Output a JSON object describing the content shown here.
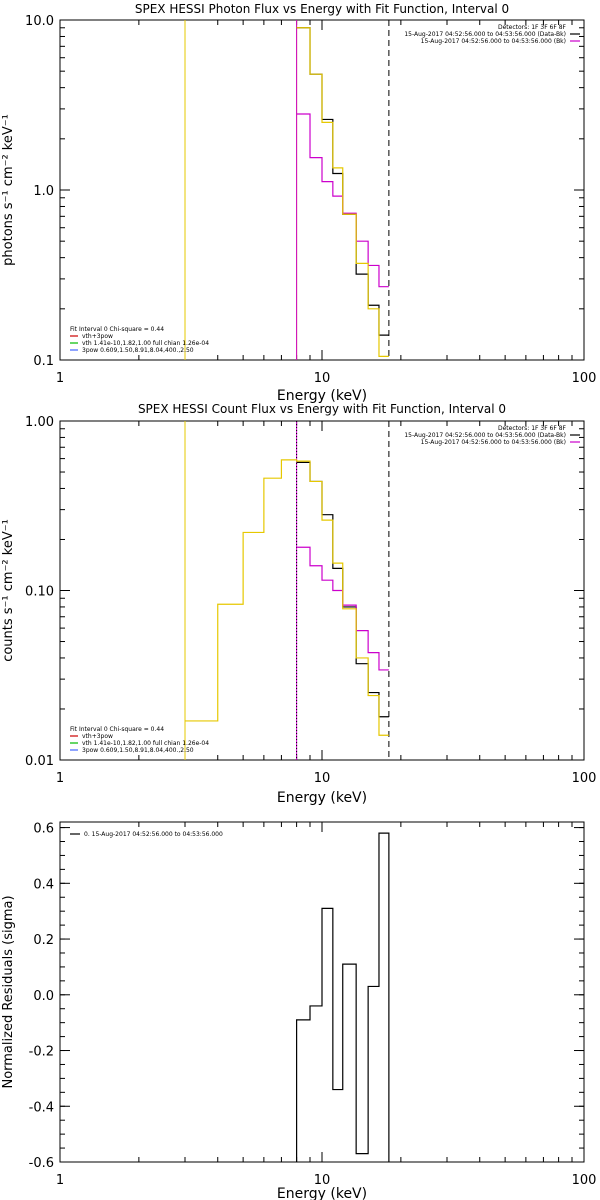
{
  "chart_data": [
    {
      "type": "line",
      "title": "SPEX HESSI Photon Flux vs Energy with Fit Function, Interval 0",
      "xlabel": "Energy (keV)",
      "ylabel": "photons s⁻¹ cm⁻² keV⁻¹",
      "xscale": "log",
      "yscale": "log",
      "xlim": [
        1,
        100
      ],
      "ylim": [
        0.1,
        10
      ],
      "xticks": [
        {
          "v": 1,
          "label": "1"
        },
        {
          "v": 10,
          "label": "10"
        },
        {
          "v": 100,
          "label": "100"
        }
      ],
      "yticks": [
        {
          "v": 0.1,
          "label": "0.1"
        },
        {
          "v": 1,
          "label": "1.0"
        },
        {
          "v": 10,
          "label": "10.0"
        }
      ],
      "header_lines": [
        "Detectors: 1F 3F 6F 8F",
        "15-Aug-2017 04:52:56.000 to 04:53:56.000 (Data-Bk)",
        "15-Aug-2017 04:52:56.000 to 04:53:56.000 (Bk)"
      ],
      "fit_legend": [
        "Fit Interval  0   Chi-square = 0.44",
        "vth+3pow",
        "vth 1.41e-10,1.82,1.00  full chian 1.26e-04",
        "3pow 0.609,1.50,8.91,8.04,400.,2.50"
      ],
      "vlines": [
        {
          "x": 3.0,
          "color": "#e6c800",
          "style": "solid"
        },
        {
          "x": 8.0,
          "color": "#e6c800",
          "style": "solid"
        },
        {
          "x": 8.0,
          "color": "#cc00cc",
          "style": "solid"
        },
        {
          "x": 18.0,
          "color": "#000000",
          "style": "dashed"
        }
      ],
      "edges": [
        8.0,
        9.0,
        10.0,
        11.0,
        12.0,
        13.5,
        15.0,
        16.5,
        18.0
      ],
      "series": [
        {
          "name": "15-Aug-2017 04:52:56.000 to 04:53:56.000 (Data-Bk)",
          "color": "#000000",
          "values": [
            9.0,
            4.8,
            2.6,
            1.25,
            0.72,
            0.32,
            0.21,
            0.14
          ]
        },
        {
          "name": "15-Aug-2017 04:52:56.000 to 04:53:56.000 (Bk)",
          "color": "#cc00cc",
          "values": [
            2.8,
            1.55,
            1.12,
            0.92,
            0.73,
            0.5,
            0.36,
            0.27
          ]
        },
        {
          "name": "vth+3pow",
          "color": "#e6c800",
          "values": [
            9.0,
            4.8,
            2.5,
            1.35,
            0.72,
            0.37,
            0.2,
            0.105
          ]
        }
      ]
    },
    {
      "type": "line",
      "title": "SPEX HESSI Count Flux vs Energy with Fit Function, Interval 0",
      "xlabel": "Energy (keV)",
      "ylabel": "counts s⁻¹ cm⁻² keV⁻¹",
      "xscale": "log",
      "yscale": "log",
      "xlim": [
        1,
        100
      ],
      "ylim": [
        0.01,
        1
      ],
      "xticks": [
        {
          "v": 1,
          "label": "1"
        },
        {
          "v": 10,
          "label": "10"
        },
        {
          "v": 100,
          "label": "100"
        }
      ],
      "yticks": [
        {
          "v": 0.01,
          "label": "0.01"
        },
        {
          "v": 0.1,
          "label": "0.10"
        },
        {
          "v": 1,
          "label": "1.00"
        }
      ],
      "header_lines": [
        "Detectors: 1F 3F 6F 8F",
        "15-Aug-2017 04:52:56.000 to 04:53:56.000 (Data-Bk)",
        "15-Aug-2017 04:52:56.000 to 04:53:56.000 (Bk)"
      ],
      "fit_legend": [
        "Fit Interval  0   Chi-square = 0.44",
        "vth+3pow",
        "vth 1.41e-10,1.82,1.00  full chian 1.26e-04",
        "3pow 0.609,1.50,8.91,8.04,400.,2.50"
      ],
      "vlines": [
        {
          "x": 3.0,
          "color": "#e6c800",
          "style": "solid"
        },
        {
          "x": 8.0,
          "color": "#cc00cc",
          "style": "solid"
        },
        {
          "x": 8.0,
          "color": "#000000",
          "style": "dotted"
        },
        {
          "x": 18.0,
          "color": "#000000",
          "style": "dashed"
        }
      ],
      "edges": [
        8.0,
        9.0,
        10.0,
        11.0,
        12.0,
        13.5,
        15.0,
        16.5,
        18.0
      ],
      "series": [
        {
          "name": "15-Aug-2017 04:52:56.000 to 04:53:56.000 (Data-Bk)",
          "color": "#000000",
          "values": [
            0.57,
            0.44,
            0.28,
            0.135,
            0.08,
            0.037,
            0.025,
            0.018
          ]
        },
        {
          "name": "15-Aug-2017 04:52:56.000 to 04:53:56.000 (Bk)",
          "color": "#cc00cc",
          "values": [
            0.18,
            0.14,
            0.115,
            0.1,
            0.082,
            0.058,
            0.043,
            0.034
          ]
        },
        {
          "name": "vth+3pow",
          "color": "#e6c800",
          "edges": [
            3.0,
            4.0,
            5.0,
            6.0,
            7.0,
            8.0,
            9.0,
            10.0,
            11.0,
            12.0,
            13.5,
            15.0,
            16.5,
            18.0
          ],
          "values": [
            0.017,
            0.083,
            0.22,
            0.46,
            0.59,
            0.58,
            0.44,
            0.26,
            0.145,
            0.078,
            0.04,
            0.024,
            0.014
          ]
        }
      ]
    },
    {
      "type": "line",
      "title": "",
      "xlabel": "Energy (keV)",
      "ylabel": "Normalized Residuals (sigma)",
      "xscale": "log",
      "yscale": "linear",
      "xlim": [
        1,
        100
      ],
      "ylim": [
        -0.6,
        0.62
      ],
      "xticks": [
        {
          "v": 1,
          "label": "1"
        },
        {
          "v": 10,
          "label": "10"
        },
        {
          "v": 100,
          "label": "100"
        }
      ],
      "yticks": [
        {
          "v": -0.6,
          "label": "-0.6"
        },
        {
          "v": -0.4,
          "label": "-0.4"
        },
        {
          "v": -0.2,
          "label": "-0.2"
        },
        {
          "v": 0.0,
          "label": "0.0"
        },
        {
          "v": 0.2,
          "label": "0.2"
        },
        {
          "v": 0.4,
          "label": "0.4"
        },
        {
          "v": 0.6,
          "label": "0.6"
        }
      ],
      "header_lines": [],
      "fit_legend": [],
      "legend": "0. 15-Aug-2017 04:52:56.000 to 04:53:56.000",
      "vlines": [],
      "edges": [
        8.0,
        9.0,
        10.0,
        11.0,
        12.0,
        13.5,
        15.0,
        16.5,
        18.0
      ],
      "series": [
        {
          "name": "0. 15-Aug-2017 04:52:56.000 to 04:53:56.000",
          "color": "#000000",
          "values": [
            -0.09,
            -0.04,
            0.31,
            -0.34,
            0.11,
            -0.57,
            0.03,
            0.58
          ]
        }
      ]
    }
  ]
}
